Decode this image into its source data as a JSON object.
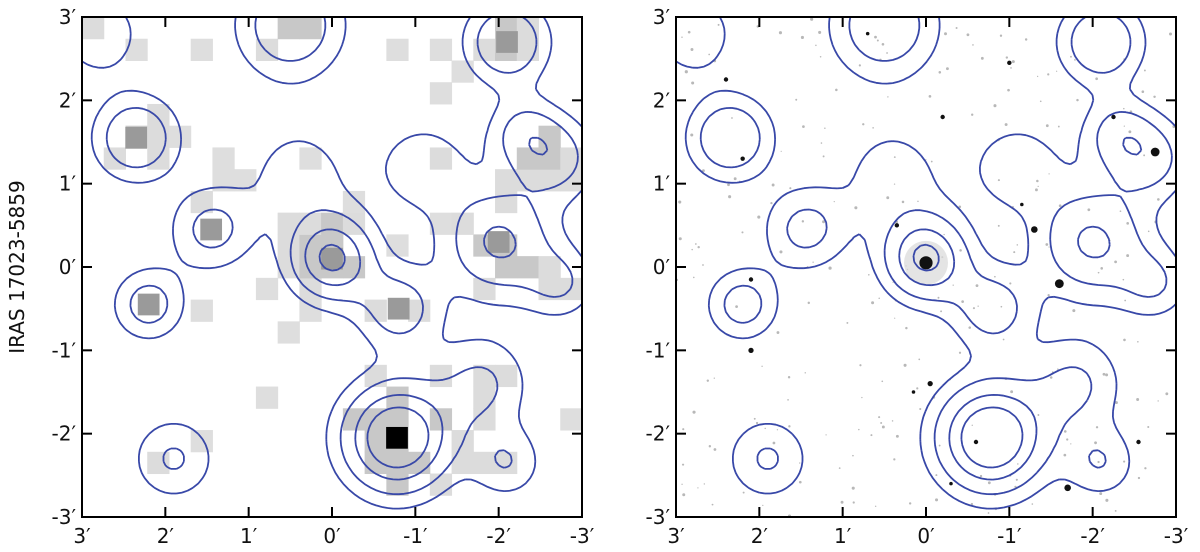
{
  "chart_data": [
    {
      "type": "heatmap",
      "title": "",
      "ylabel": "IRAS 17023-5859",
      "xlabel": "",
      "xlim": [
        3,
        -3
      ],
      "ylim": [
        -3,
        3
      ],
      "x_ticks": [
        3,
        2,
        1,
        0,
        -1,
        -2,
        -3
      ],
      "x_tick_labels": [
        "3′",
        "2′",
        "1′",
        "0′",
        "-1′",
        "-2′",
        "-3′"
      ],
      "y_ticks": [
        3,
        2,
        1,
        0,
        -1,
        -2,
        -3
      ],
      "y_tick_labels": [
        "3′",
        "2′",
        "1′",
        "0′",
        "-1′",
        "-2′",
        "-3′"
      ],
      "background": "pixelated grayscale map",
      "contour_color": "#3848a8",
      "peak": {
        "x": -0.78,
        "y": -2.05
      },
      "sources": [
        {
          "x": 0.0,
          "y": 0.1
        },
        {
          "x": -0.78,
          "y": -2.05
        },
        {
          "x": -2.0,
          "y": 0.3
        },
        {
          "x": -2.1,
          "y": 2.7
        },
        {
          "x": 2.35,
          "y": 1.55
        },
        {
          "x": -0.8,
          "y": -0.5
        },
        {
          "x": 2.2,
          "y": -0.45
        },
        {
          "x": 1.45,
          "y": 0.45
        }
      ]
    },
    {
      "type": "scatter",
      "title": "",
      "xlabel": "",
      "ylabel": "",
      "xlim": [
        3,
        -3
      ],
      "ylim": [
        -3,
        3
      ],
      "x_ticks": [
        3,
        2,
        1,
        0,
        -1,
        -2,
        -3
      ],
      "x_tick_labels": [
        "3′",
        "2′",
        "1′",
        "0′",
        "-1′",
        "-2′",
        "-3′"
      ],
      "y_ticks": [
        3,
        2,
        1,
        0,
        -1,
        -2,
        -3
      ],
      "y_tick_labels": [
        "3′",
        "2′",
        "1′",
        "0′",
        "-1′",
        "-2′",
        "-3′"
      ],
      "background": "optical star field (inverted grayscale)",
      "contour_color": "#3848a8",
      "bright_stars": [
        {
          "x": 0.0,
          "y": 0.05,
          "size": 3
        },
        {
          "x": -1.6,
          "y": -0.2,
          "size": 2
        },
        {
          "x": -2.75,
          "y": 1.38,
          "size": 2
        },
        {
          "x": -1.3,
          "y": 0.45,
          "size": 1.5
        },
        {
          "x": -1.7,
          "y": -2.65,
          "size": 1.5
        },
        {
          "x": 2.1,
          "y": -1.0,
          "size": 1.2
        },
        {
          "x": 2.2,
          "y": 1.3,
          "size": 1
        },
        {
          "x": 2.4,
          "y": 2.25,
          "size": 1
        },
        {
          "x": -0.05,
          "y": -1.4,
          "size": 1.2
        },
        {
          "x": -1.0,
          "y": 2.45,
          "size": 1
        },
        {
          "x": -2.55,
          "y": -2.1,
          "size": 1
        },
        {
          "x": 0.35,
          "y": 0.5,
          "size": 1
        },
        {
          "x": -0.2,
          "y": 1.8,
          "size": 1
        },
        {
          "x": -0.6,
          "y": -2.1,
          "size": 1
        },
        {
          "x": 2.1,
          "y": -0.15,
          "size": 1
        },
        {
          "x": -2.25,
          "y": 1.8,
          "size": 1
        },
        {
          "x": -1.15,
          "y": 0.75,
          "size": 0.8
        },
        {
          "x": 0.7,
          "y": 2.8,
          "size": 0.8
        },
        {
          "x": -0.3,
          "y": -2.6,
          "size": 0.8
        },
        {
          "x": 0.15,
          "y": -1.5,
          "size": 0.8
        }
      ]
    }
  ]
}
